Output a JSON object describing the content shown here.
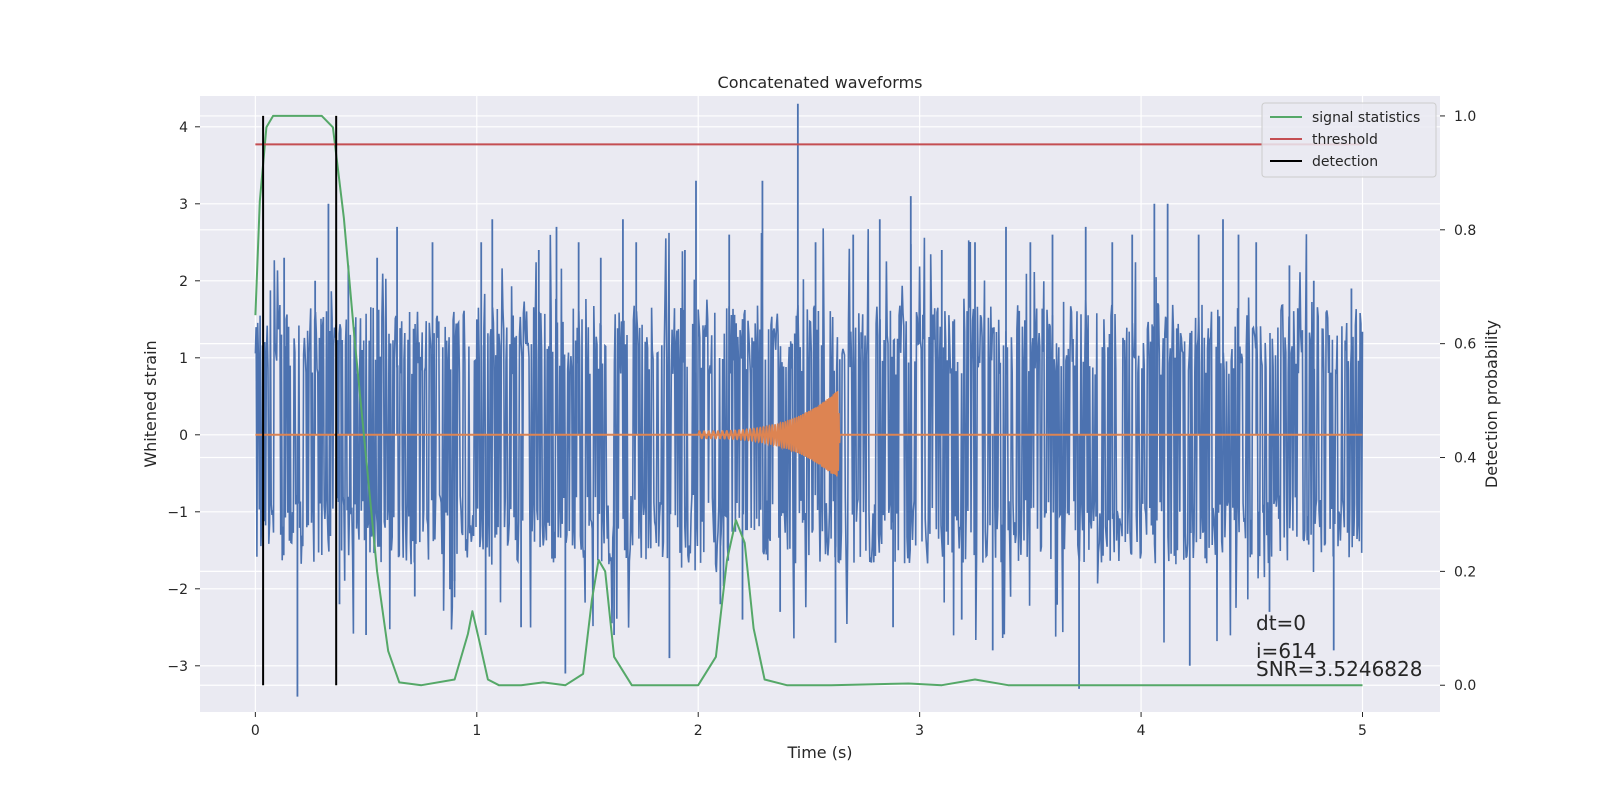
{
  "chart_data": {
    "type": "line",
    "title": "Concatenated waveforms",
    "xlabel": "Time (s)",
    "ylabel": "Whitened strain",
    "ylabel_right": "Detection probability",
    "xlim": [
      -0.25,
      5.35
    ],
    "ylim": [
      -3.6,
      4.4
    ],
    "ylim_right": [
      -0.047,
      1.035
    ],
    "xticks": [
      0,
      1,
      2,
      3,
      4,
      5
    ],
    "yticks": [
      -3,
      -2,
      -1,
      0,
      1,
      2,
      3,
      4
    ],
    "yticks_right": [
      0.0,
      0.2,
      0.4,
      0.6,
      0.8,
      1.0
    ],
    "grid": true,
    "legend_position": "top-right",
    "legend": [
      "signal statistics",
      "threshold",
      "detection"
    ],
    "colors": {
      "strain": "#4c72b0",
      "template": "#dd8452",
      "signal_statistics": "#55a868",
      "threshold": "#c44e52",
      "detection": "#000000",
      "plot_bg": "#eaeaf2",
      "grid": "#ffffff"
    },
    "series": [
      {
        "name": "signal statistics",
        "axis": "right",
        "x": [
          0.0,
          0.02,
          0.05,
          0.08,
          0.12,
          0.2,
          0.3,
          0.35,
          0.4,
          0.45,
          0.5,
          0.55,
          0.6,
          0.65,
          0.75,
          0.9,
          0.96,
          0.98,
          1.01,
          1.05,
          1.1,
          1.2,
          1.3,
          1.4,
          1.48,
          1.52,
          1.55,
          1.58,
          1.62,
          1.7,
          1.8,
          2.0,
          2.08,
          2.13,
          2.17,
          2.21,
          2.25,
          2.3,
          2.4,
          2.6,
          2.95,
          3.1,
          3.25,
          3.4,
          3.8,
          4.2,
          4.6,
          5.0
        ],
        "y": [
          0.65,
          0.85,
          0.98,
          1.0,
          1.0,
          1.0,
          1.0,
          0.98,
          0.82,
          0.6,
          0.4,
          0.2,
          0.06,
          0.005,
          0.0,
          0.01,
          0.09,
          0.13,
          0.08,
          0.01,
          0.0,
          0.0,
          0.005,
          0.0,
          0.02,
          0.15,
          0.22,
          0.2,
          0.05,
          0.0,
          0.0,
          0.0,
          0.05,
          0.22,
          0.29,
          0.25,
          0.1,
          0.01,
          0.0,
          0.0,
          0.003,
          0.0,
          0.01,
          0.0,
          0.0,
          0.0,
          0.0,
          0.0
        ]
      },
      {
        "name": "threshold",
        "axis": "right",
        "x": [
          0.0,
          5.0
        ],
        "y": [
          0.95,
          0.95
        ]
      }
    ],
    "strain": {
      "x_range": [
        0.0,
        5.0
      ],
      "band": [
        -1.3,
        1.3
      ],
      "spikes": [
        {
          "x": 0.13,
          "y": 2.3
        },
        {
          "x": 0.19,
          "y": -3.4
        },
        {
          "x": 0.27,
          "y": 2.0
        },
        {
          "x": 0.33,
          "y": 3.0
        },
        {
          "x": 0.38,
          "y": -2.2
        },
        {
          "x": 0.42,
          "y": 2.2
        },
        {
          "x": 0.5,
          "y": -2.6
        },
        {
          "x": 0.55,
          "y": 2.3
        },
        {
          "x": 0.64,
          "y": 2.7
        },
        {
          "x": 0.72,
          "y": -2.1
        },
        {
          "x": 0.8,
          "y": 2.5
        },
        {
          "x": 0.9,
          "y": -1.9
        },
        {
          "x": 1.02,
          "y": 2.5
        },
        {
          "x": 1.04,
          "y": -2.6
        },
        {
          "x": 1.07,
          "y": 2.8
        },
        {
          "x": 1.2,
          "y": -2.5
        },
        {
          "x": 1.28,
          "y": 2.4
        },
        {
          "x": 1.36,
          "y": 2.7
        },
        {
          "x": 1.4,
          "y": -3.1
        },
        {
          "x": 1.46,
          "y": 2.5
        },
        {
          "x": 1.56,
          "y": 2.3
        },
        {
          "x": 1.62,
          "y": -2.6
        },
        {
          "x": 1.66,
          "y": 2.8
        },
        {
          "x": 1.72,
          "y": 2.5
        },
        {
          "x": 1.87,
          "y": -2.9
        },
        {
          "x": 1.94,
          "y": 2.4
        },
        {
          "x": 1.99,
          "y": 3.3
        },
        {
          "x": 2.1,
          "y": -2.2
        },
        {
          "x": 2.14,
          "y": 2.6
        },
        {
          "x": 2.2,
          "y": -2.4
        },
        {
          "x": 2.29,
          "y": 3.3
        },
        {
          "x": 2.37,
          "y": -2.3
        },
        {
          "x": 2.45,
          "y": 4.3
        },
        {
          "x": 2.53,
          "y": 2.5
        },
        {
          "x": 2.62,
          "y": -2.7
        },
        {
          "x": 2.7,
          "y": 2.6
        },
        {
          "x": 2.82,
          "y": 2.8
        },
        {
          "x": 2.88,
          "y": -2.5
        },
        {
          "x": 2.96,
          "y": 3.1
        },
        {
          "x": 3.1,
          "y": 2.4
        },
        {
          "x": 3.19,
          "y": -2.4
        },
        {
          "x": 3.25,
          "y": 2.5
        },
        {
          "x": 3.33,
          "y": -2.8
        },
        {
          "x": 3.39,
          "y": 2.7
        },
        {
          "x": 3.5,
          "y": 2.5
        },
        {
          "x": 3.6,
          "y": 2.6
        },
        {
          "x": 3.72,
          "y": -3.3
        },
        {
          "x": 3.75,
          "y": 2.7
        },
        {
          "x": 3.87,
          "y": 2.5
        },
        {
          "x": 3.96,
          "y": 2.6
        },
        {
          "x": 4.06,
          "y": 3.0
        },
        {
          "x": 4.12,
          "y": 3.0
        },
        {
          "x": 4.22,
          "y": -3.0
        },
        {
          "x": 4.26,
          "y": 2.6
        },
        {
          "x": 4.37,
          "y": 2.8
        },
        {
          "x": 4.44,
          "y": 2.6
        },
        {
          "x": 4.52,
          "y": 2.5
        },
        {
          "x": 4.58,
          "y": -2.3
        },
        {
          "x": 4.67,
          "y": 2.2
        },
        {
          "x": 4.78,
          "y": 2.0
        },
        {
          "x": 4.87,
          "y": -2.8
        },
        {
          "x": 4.95,
          "y": 1.9
        }
      ]
    },
    "template": {
      "x_start": 2.0,
      "x_end": 2.64,
      "peak_amplitude": 0.6
    },
    "detections_x": [
      0.035,
      0.365
    ]
  },
  "annotation": {
    "dt": "dt=0",
    "i": "i=614",
    "snr": "SNR=3.5246828"
  }
}
